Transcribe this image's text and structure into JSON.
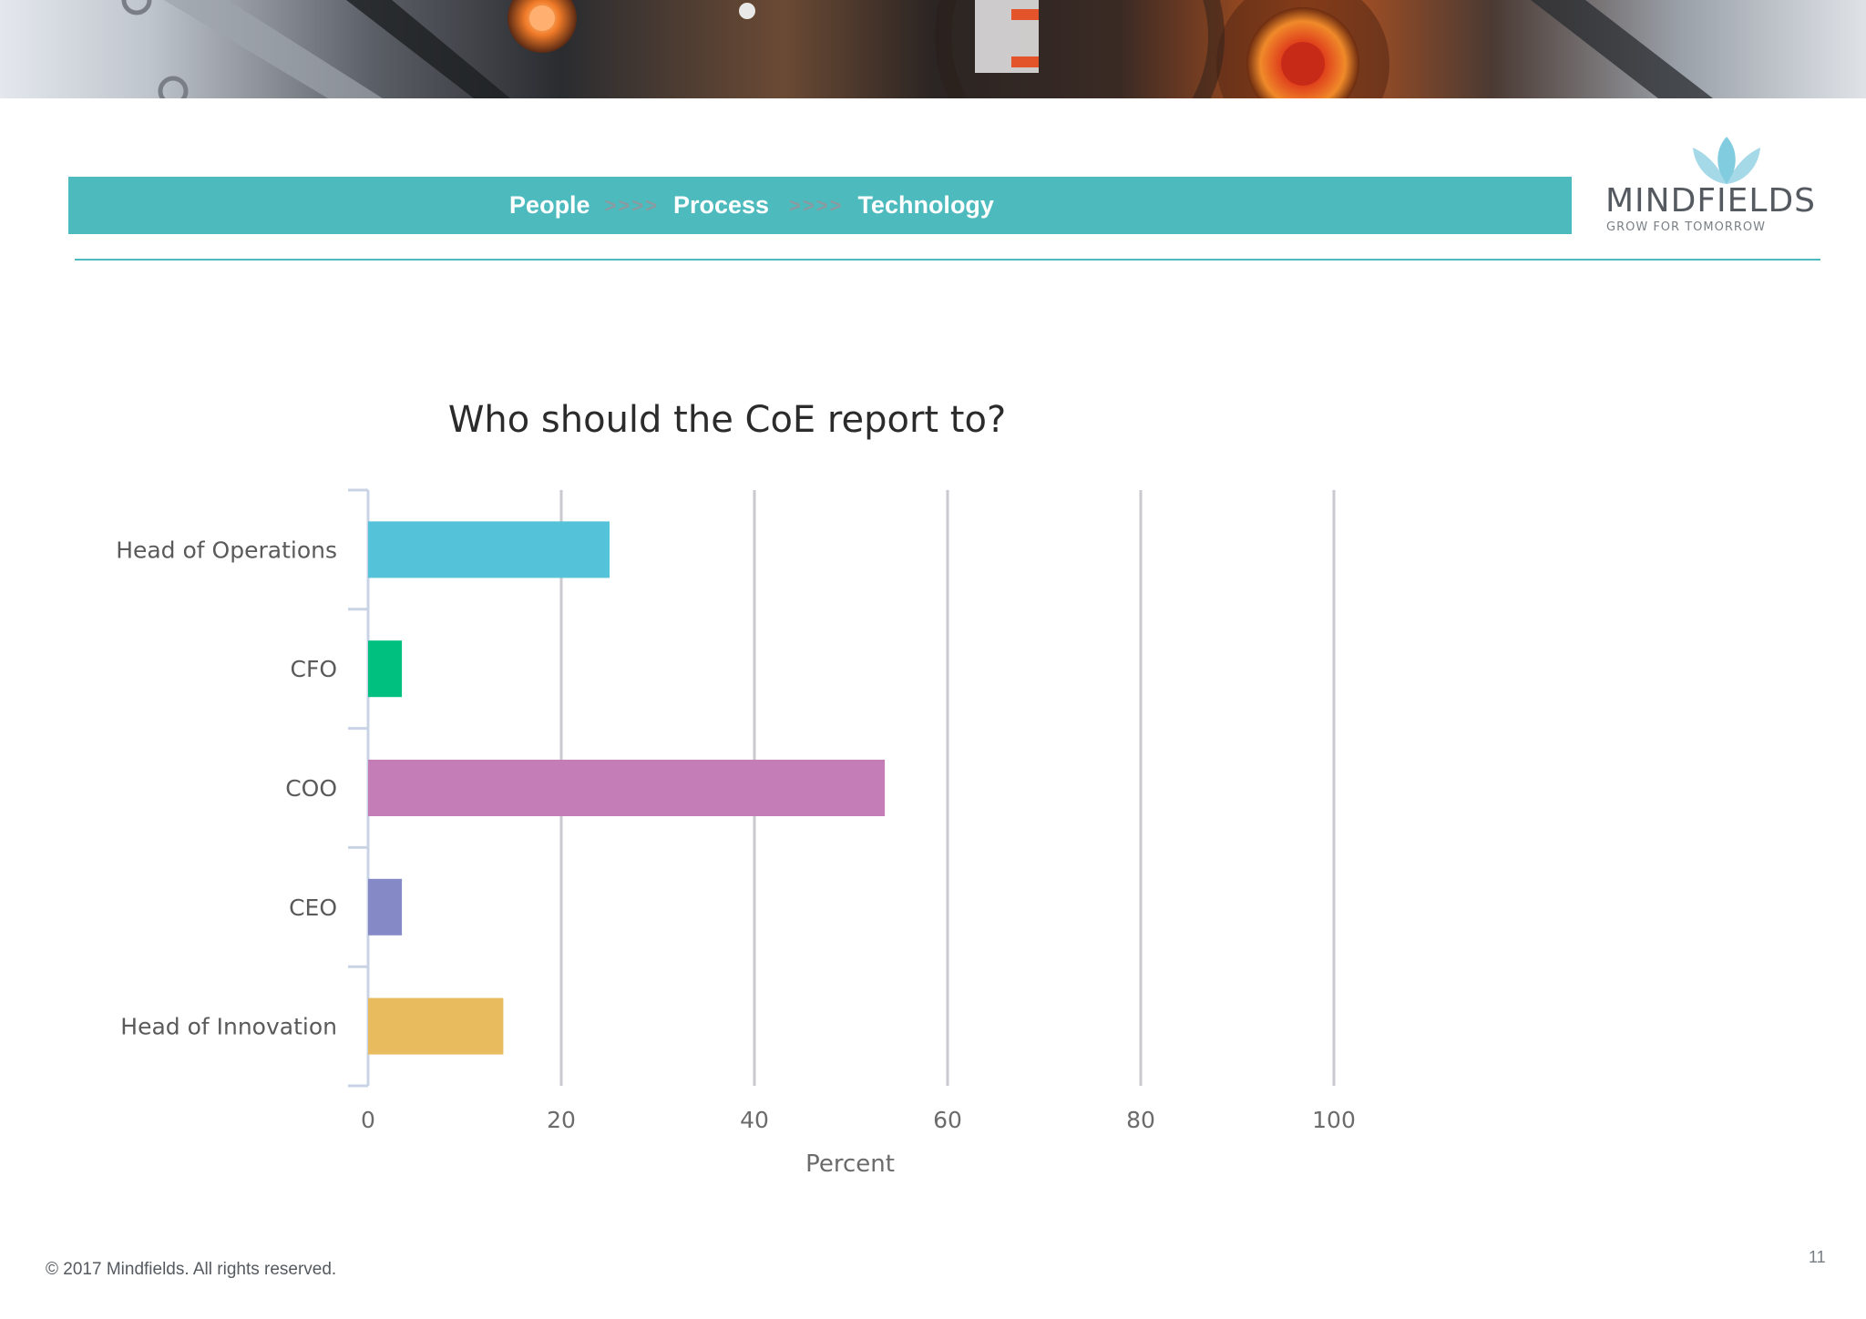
{
  "banner": {
    "people": "People",
    "sep1": ">>>>",
    "process": "Process",
    "sep2": ">>>>",
    "technology": "Technology"
  },
  "logo": {
    "wordmark": "MINDFIELDS",
    "tagline": "GROW FOR TOMORROW",
    "lotus_color": "#6cc3d9"
  },
  "colors": {
    "banner": "#4dbbbe",
    "rule": "#4dbbbe"
  },
  "chart_data": {
    "type": "bar",
    "orientation": "horizontal",
    "title": "Who should the CoE report to?",
    "xlabel": "Percent",
    "ylabel": "",
    "categories": [
      "Head of Operations",
      "CFO",
      "COO",
      "CEO",
      "Head of Innovation"
    ],
    "values": [
      25,
      3.5,
      53.5,
      3.5,
      14
    ],
    "bar_colors": [
      "#54c3d9",
      "#00c07f",
      "#c47db7",
      "#8589c6",
      "#e9bb5f"
    ],
    "xlim": [
      0,
      100
    ],
    "xticks": [
      "0",
      "20",
      "40",
      "60",
      "80",
      "100"
    ],
    "grid": true
  },
  "footer": {
    "copyright": "© 2017  Mindfields. All rights reserved.",
    "page_number": "11"
  }
}
